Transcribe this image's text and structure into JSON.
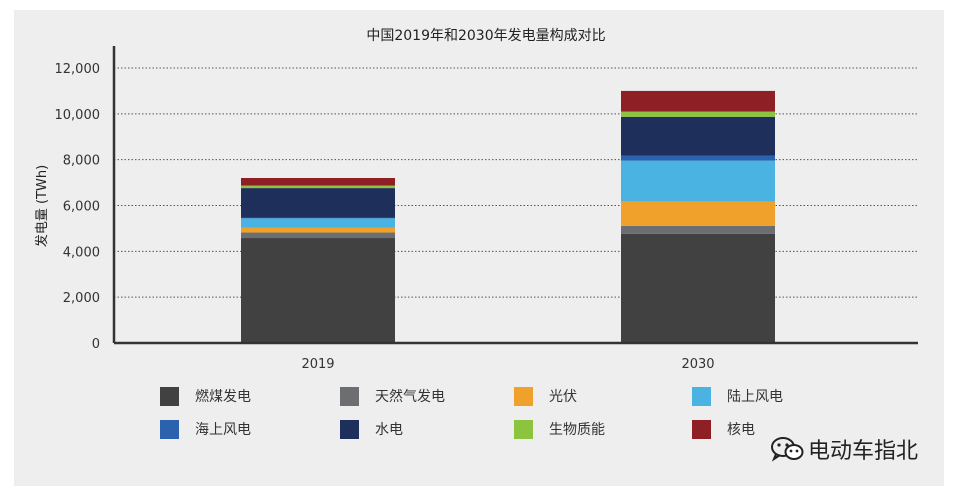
{
  "chart_data": {
    "type": "bar",
    "stacked": true,
    "title": "中国2019年和2030年发电量构成对比",
    "ylabel": "发电量 (TWh)",
    "xlabel": "",
    "categories": [
      "2019",
      "2030"
    ],
    "ylim": [
      0,
      12000
    ],
    "yticks": [
      "0",
      "2,000",
      "4,000",
      "6,000",
      "8,000",
      "10,000",
      "12,000"
    ],
    "ytick_values": [
      0,
      2000,
      4000,
      6000,
      8000,
      10000,
      12000
    ],
    "grid": true,
    "legend_position": "bottom",
    "series": [
      {
        "name": "燃煤发电",
        "color": "#414142",
        "values": [
          4580,
          4760
        ]
      },
      {
        "name": "天然气发电",
        "color": "#6d6e71",
        "values": [
          240,
          350
        ]
      },
      {
        "name": "光伏",
        "color": "#f0a12b",
        "values": [
          220,
          1060
        ]
      },
      {
        "name": "陆上风电",
        "color": "#4bb3e2",
        "values": [
          400,
          1790
        ]
      },
      {
        "name": "海上风电",
        "color": "#2a62ad",
        "values": [
          20,
          220
        ]
      },
      {
        "name": "水电",
        "color": "#1e2f5c",
        "values": [
          1300,
          1690
        ]
      },
      {
        "name": "生物质能",
        "color": "#8dc43f",
        "values": [
          110,
          230
        ]
      },
      {
        "name": "核电",
        "color": "#8e2025",
        "values": [
          330,
          900
        ]
      }
    ]
  },
  "watermark": {
    "icon": "wechat-icon",
    "text": "电动车指北"
  }
}
